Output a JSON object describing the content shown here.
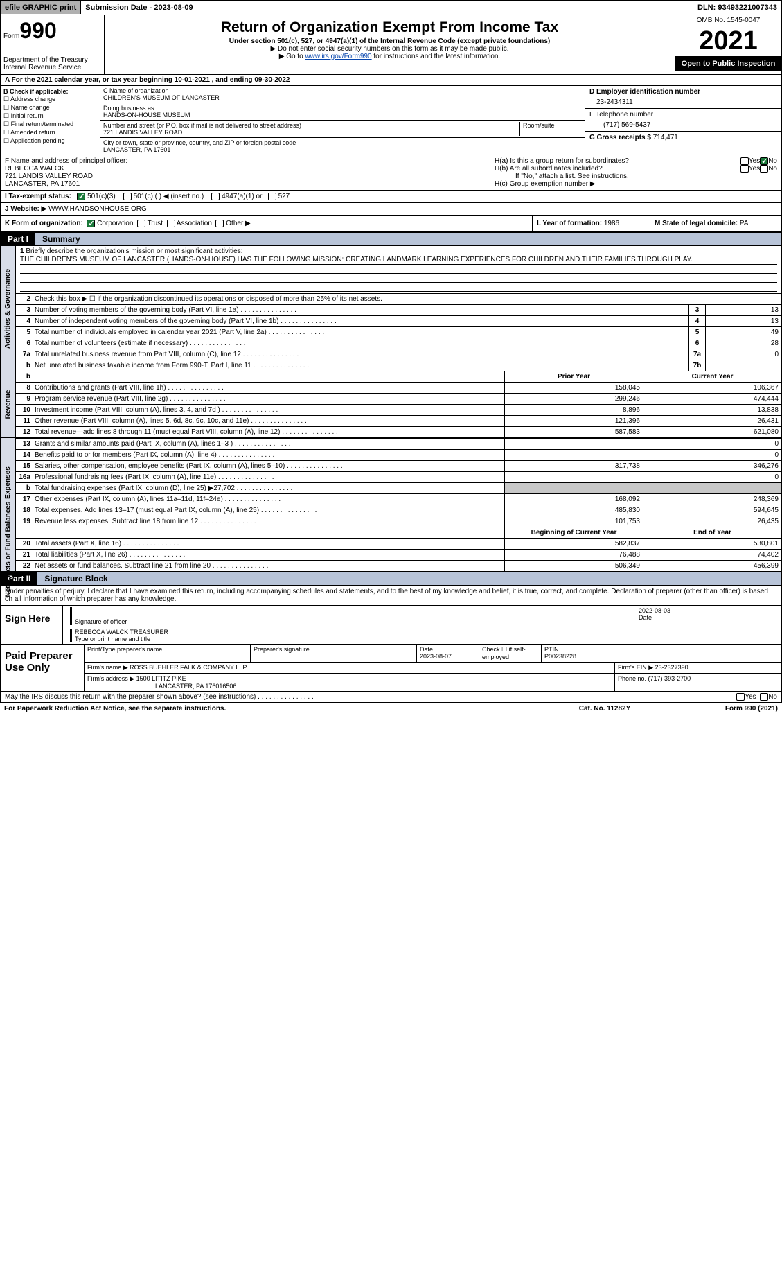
{
  "topbar": {
    "efile": "efile GRAPHIC print",
    "sub_label": "Submission Date - ",
    "sub_date": "2023-08-09",
    "dln_label": "DLN: ",
    "dln": "93493221007343"
  },
  "header": {
    "form_word": "Form",
    "form_num": "990",
    "dept": "Department of the Treasury\nInternal Revenue Service",
    "title": "Return of Organization Exempt From Income Tax",
    "sub1": "Under section 501(c), 527, or 4947(a)(1) of the Internal Revenue Code (except private foundations)",
    "sub2a": "▶ Do not enter social security numbers on this form as it may be made public.",
    "sub2b_pre": "▶ Go to ",
    "sub2b_link": "www.irs.gov/Form990",
    "sub2b_post": " for instructions and the latest information.",
    "omb": "OMB No. 1545-0047",
    "year": "2021",
    "openpub": "Open to Public Inspection"
  },
  "rowA": "A For the 2021 calendar year, or tax year beginning 10-01-2021    , and ending 09-30-2022",
  "colB": {
    "label": "B Check if applicable:",
    "opts": [
      "Address change",
      "Name change",
      "Initial return",
      "Final return/terminated",
      "Amended return",
      "Application pending"
    ]
  },
  "colC": {
    "name_lbl": "C Name of organization",
    "name": "CHILDREN'S MUSEUM OF LANCASTER",
    "dba_lbl": "Doing business as",
    "dba": "HANDS-ON-HOUSE MUSEUM",
    "street_lbl": "Number and street (or P.O. box if mail is not delivered to street address)",
    "room_lbl": "Room/suite",
    "street": "721 LANDIS VALLEY ROAD",
    "city_lbl": "City or town, state or province, country, and ZIP or foreign postal code",
    "city": "LANCASTER, PA   17601"
  },
  "colD": {
    "lbl": "D Employer identification number",
    "val": "23-2434311"
  },
  "colE": {
    "lbl": "E Telephone number",
    "val": "(717) 569-5437"
  },
  "colG": {
    "lbl": "G Gross receipts $ ",
    "val": "714,471"
  },
  "colF": {
    "lbl": "F  Name and address of principal officer:",
    "name": "REBECCA WALCK",
    "addr1": "721 LANDIS VALLEY ROAD",
    "addr2": "LANCASTER, PA   17601"
  },
  "colH": {
    "a": "H(a)  Is this a group return for subordinates?",
    "b": "H(b)  Are all subordinates included?",
    "bnote": "If \"No,\" attach a list. See instructions.",
    "c": "H(c)  Group exemption number ▶",
    "yes": "Yes",
    "no": "No"
  },
  "rowI": {
    "lbl": "I   Tax-exempt status:",
    "o1": "501(c)(3)",
    "o2": "501(c) (  ) ◀ (insert no.)",
    "o3": "4947(a)(1) or",
    "o4": "527"
  },
  "rowJ": {
    "lbl": "J   Website: ▶  ",
    "val": "WWW.HANDSONHOUSE.ORG"
  },
  "rowK": {
    "lbl": "K Form of organization:",
    "o1": "Corporation",
    "o2": "Trust",
    "o3": "Association",
    "o4": "Other ▶"
  },
  "rowL": {
    "lbl": "L Year of formation: ",
    "val": "1986"
  },
  "rowM": {
    "lbl": "M State of legal domicile: ",
    "val": "PA"
  },
  "part1": {
    "num": "Part I",
    "title": "Summary"
  },
  "summary": {
    "tab1": "Activities & Governance",
    "tab2": "Revenue",
    "tab3": "Expenses",
    "tab4": "Net Assets or Fund Balances",
    "l1_lbl": "Briefly describe the organization's mission or most significant activities:",
    "l1_text": "THE CHILDREN'S MUSEUM OF LANCASTER (HANDS-ON-HOUSE) HAS THE FOLLOWING MISSION: CREATING LANDMARK LEARNING EXPERIENCES FOR CHILDREN AND THEIR FAMILIES THROUGH PLAY.",
    "l2": "Check this box ▶ ☐  if the organization discontinued its operations or disposed of more than 25% of its net assets.",
    "rows_ag": [
      {
        "n": "3",
        "d": "Number of voting members of the governing body (Part VI, line 1a)",
        "bx": "3",
        "v": "13"
      },
      {
        "n": "4",
        "d": "Number of independent voting members of the governing body (Part VI, line 1b)",
        "bx": "4",
        "v": "13"
      },
      {
        "n": "5",
        "d": "Total number of individuals employed in calendar year 2021 (Part V, line 2a)",
        "bx": "5",
        "v": "49"
      },
      {
        "n": "6",
        "d": "Total number of volunteers (estimate if necessary)",
        "bx": "6",
        "v": "28"
      },
      {
        "n": "7a",
        "d": "Total unrelated business revenue from Part VIII, column (C), line 12",
        "bx": "7a",
        "v": "0"
      },
      {
        "n": "b",
        "d": "Net unrelated business taxable income from Form 990-T, Part I, line 11",
        "bx": "7b",
        "v": ""
      }
    ],
    "hdr_py": "Prior Year",
    "hdr_cy": "Current Year",
    "rows_rev": [
      {
        "n": "8",
        "d": "Contributions and grants (Part VIII, line 1h)",
        "py": "158,045",
        "cy": "106,367"
      },
      {
        "n": "9",
        "d": "Program service revenue (Part VIII, line 2g)",
        "py": "299,246",
        "cy": "474,444"
      },
      {
        "n": "10",
        "d": "Investment income (Part VIII, column (A), lines 3, 4, and 7d )",
        "py": "8,896",
        "cy": "13,838"
      },
      {
        "n": "11",
        "d": "Other revenue (Part VIII, column (A), lines 5, 6d, 8c, 9c, 10c, and 11e)",
        "py": "121,396",
        "cy": "26,431"
      },
      {
        "n": "12",
        "d": "Total revenue—add lines 8 through 11 (must equal Part VIII, column (A), line 12)",
        "py": "587,583",
        "cy": "621,080"
      }
    ],
    "rows_exp": [
      {
        "n": "13",
        "d": "Grants and similar amounts paid (Part IX, column (A), lines 1–3 )",
        "py": "",
        "cy": "0"
      },
      {
        "n": "14",
        "d": "Benefits paid to or for members (Part IX, column (A), line 4)",
        "py": "",
        "cy": "0"
      },
      {
        "n": "15",
        "d": "Salaries, other compensation, employee benefits (Part IX, column (A), lines 5–10)",
        "py": "317,738",
        "cy": "346,276"
      },
      {
        "n": "16a",
        "d": "Professional fundraising fees (Part IX, column (A), line 11e)",
        "py": "",
        "cy": "0"
      },
      {
        "n": "b",
        "d": "Total fundraising expenses (Part IX, column (D), line 25) ▶27,702",
        "py": "grey",
        "cy": "grey"
      },
      {
        "n": "17",
        "d": "Other expenses (Part IX, column (A), lines 11a–11d, 11f–24e)",
        "py": "168,092",
        "cy": "248,369"
      },
      {
        "n": "18",
        "d": "Total expenses. Add lines 13–17 (must equal Part IX, column (A), line 25)",
        "py": "485,830",
        "cy": "594,645"
      },
      {
        "n": "19",
        "d": "Revenue less expenses. Subtract line 18 from line 12",
        "py": "101,753",
        "cy": "26,435"
      }
    ],
    "hdr2_py": "Beginning of Current Year",
    "hdr2_cy": "End of Year",
    "rows_na": [
      {
        "n": "20",
        "d": "Total assets (Part X, line 16)",
        "py": "582,837",
        "cy": "530,801"
      },
      {
        "n": "21",
        "d": "Total liabilities (Part X, line 26)",
        "py": "76,488",
        "cy": "74,402"
      },
      {
        "n": "22",
        "d": "Net assets or fund balances. Subtract line 21 from line 20",
        "py": "506,349",
        "cy": "456,399"
      }
    ]
  },
  "part2": {
    "num": "Part II",
    "title": "Signature Block"
  },
  "sig": {
    "decl": "Under penalties of perjury, I declare that I have examined this return, including accompanying schedules and statements, and to the best of my knowledge and belief, it is true, correct, and complete. Declaration of preparer (other than officer) is based on all information of which preparer has any knowledge.",
    "sign_here": "Sign Here",
    "sig_officer": "Signature of officer",
    "sig_date": "2022-08-03",
    "date_lbl": "Date",
    "name_title": "REBECCA WALCK  TREASURER",
    "name_title_lbl": "Type or print name and title",
    "paid": "Paid Preparer Use Only",
    "pp_name_lbl": "Print/Type preparer's name",
    "pp_sig_lbl": "Preparer's signature",
    "pp_date_lbl": "Date",
    "pp_date": "2023-08-07",
    "pp_check": "Check ☐ if self-employed",
    "ptin_lbl": "PTIN",
    "ptin": "P00238228",
    "firm_name_lbl": "Firm's name    ▶ ",
    "firm_name": "ROSS BUEHLER FALK & COMPANY LLP",
    "firm_ein_lbl": "Firm's EIN ▶ ",
    "firm_ein": "23-2327390",
    "firm_addr_lbl": "Firm's address ▶ ",
    "firm_addr": "1500 LITITZ PIKE",
    "firm_addr2": "LANCASTER, PA  176016506",
    "firm_phone_lbl": "Phone no. ",
    "firm_phone": "(717) 393-2700"
  },
  "mayirs": {
    "q": "May the IRS discuss this return with the preparer shown above? (see instructions)",
    "yes": "Yes",
    "no": "No"
  },
  "footer": {
    "left": "For Paperwork Reduction Act Notice, see the separate instructions.",
    "mid": "Cat. No. 11282Y",
    "right": "Form 990 (2021)"
  },
  "colors": {
    "bg": "#ffffff",
    "black": "#000000",
    "tabbg": "#d8dde8",
    "partbg": "#b8c4d8",
    "grey": "#c8c8c8",
    "link": "#0645ad",
    "chk": "#1a7a3a"
  }
}
